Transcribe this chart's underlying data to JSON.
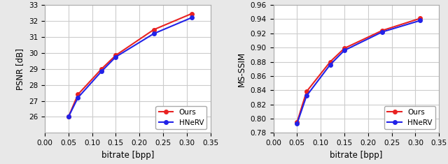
{
  "bitrate": [
    0.05,
    0.07,
    0.12,
    0.15,
    0.23,
    0.31
  ],
  "psnr_ours": [
    26.0,
    27.4,
    29.0,
    29.85,
    31.45,
    32.45
  ],
  "psnr_hnerv": [
    26.0,
    27.2,
    28.85,
    29.75,
    31.2,
    32.2
  ],
  "msssim_ours": [
    0.795,
    0.838,
    0.88,
    0.899,
    0.924,
    0.941
  ],
  "msssim_hnerv": [
    0.793,
    0.832,
    0.876,
    0.896,
    0.922,
    0.938
  ],
  "color_ours": "#e82222",
  "color_hnerv": "#2222e8",
  "xlabel": "bitrate [bpp]",
  "ylabel_left": "PSNR [dB]",
  "ylabel_right": "MS-SSIM",
  "legend_ours": "Ours",
  "legend_hnerv": "HNeRV",
  "xlim": [
    0.0,
    0.35
  ],
  "psnr_ylim": [
    25,
    33
  ],
  "psnr_yticks": [
    26,
    27,
    28,
    29,
    30,
    31,
    32,
    33
  ],
  "msssim_ylim": [
    0.78,
    0.96
  ],
  "msssim_yticks": [
    0.78,
    0.8,
    0.82,
    0.84,
    0.86,
    0.88,
    0.9,
    0.92,
    0.94,
    0.96
  ],
  "xticks": [
    0.0,
    0.05,
    0.1,
    0.15,
    0.2,
    0.25,
    0.3,
    0.35
  ],
  "marker": "o",
  "markersize": 4,
  "linewidth": 1.5,
  "grid_color": "#cccccc",
  "bg_color": "#ffffff",
  "fig_bg_color": "#e8e8e8",
  "tick_fontsize": 7.5,
  "label_fontsize": 8.5,
  "legend_fontsize": 7.5
}
